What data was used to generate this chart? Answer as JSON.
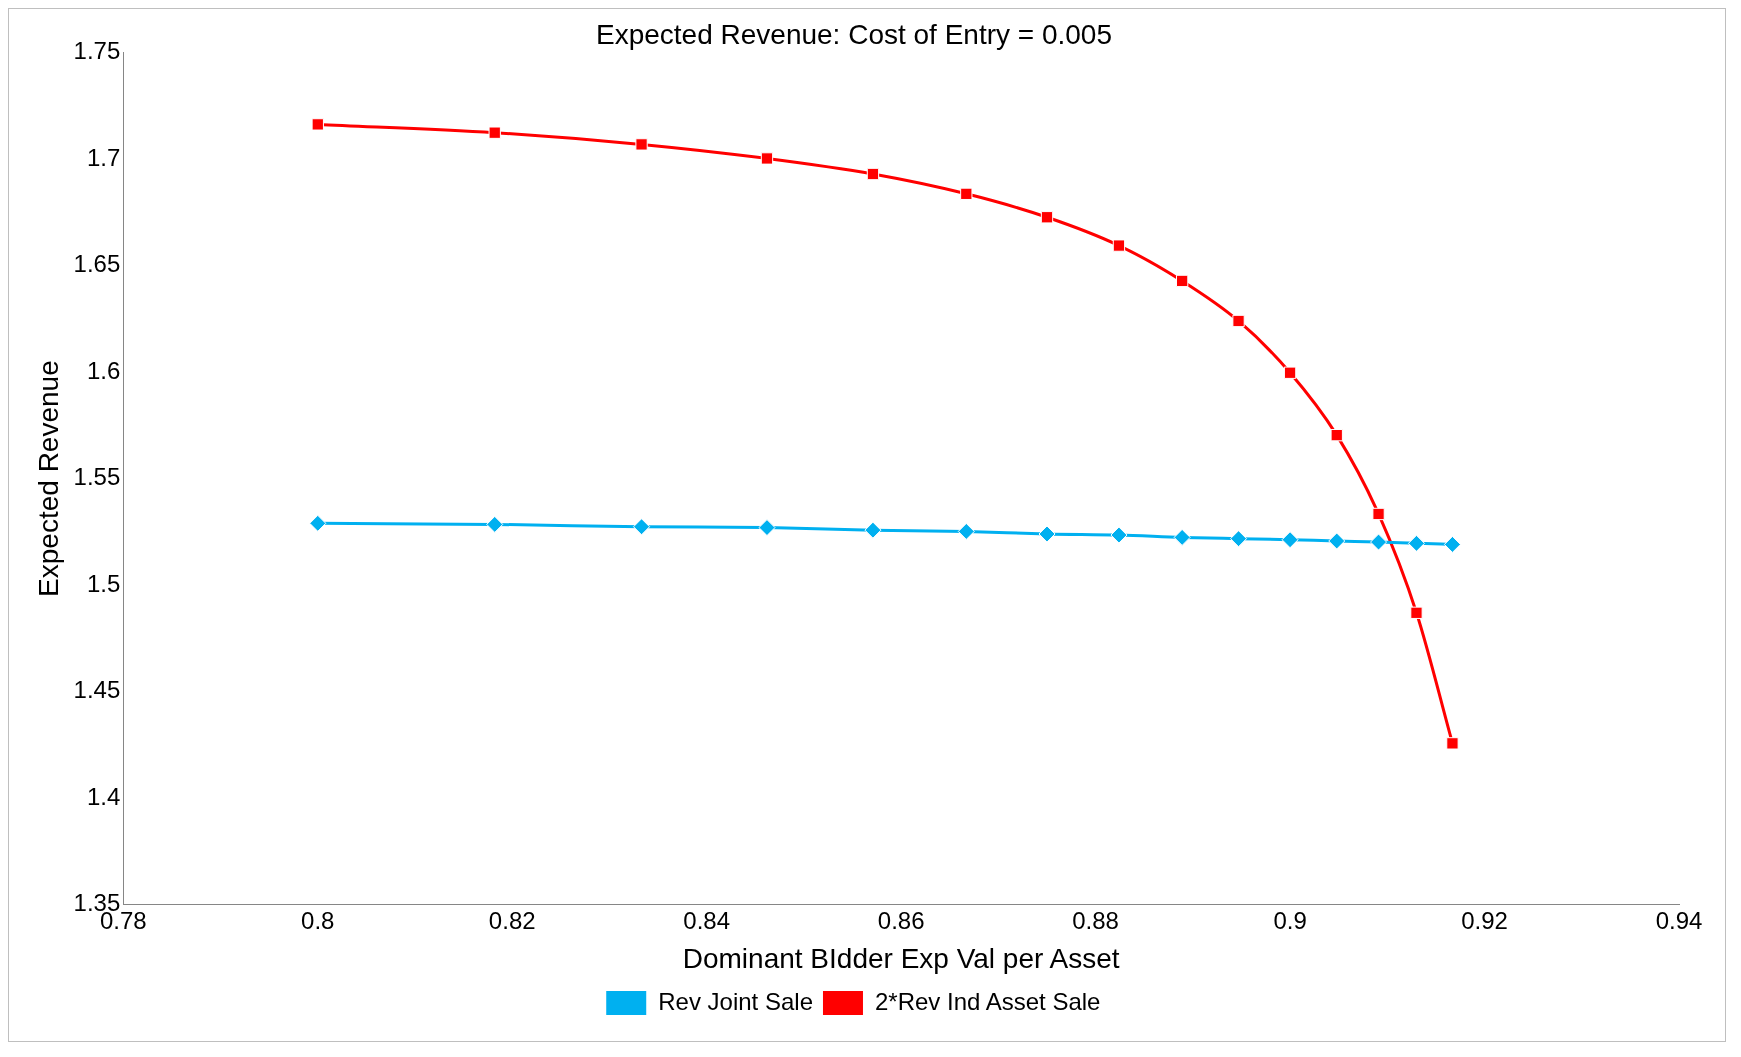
{
  "chart_data": {
    "type": "line",
    "title": "Expected Revenue: Cost of Entry = 0.005",
    "xlabel": "Dominant BIdder Exp Val per Asset",
    "ylabel": "Expected Revenue",
    "x": [
      0.8,
      0.8182,
      0.8333,
      0.8462,
      0.8571,
      0.8667,
      0.875,
      0.8824,
      0.8889,
      0.8947,
      0.9,
      0.9048,
      0.9091,
      0.913,
      0.9167
    ],
    "series": [
      {
        "name": "Rev Joint Sale",
        "color": "#00b0f0",
        "marker": "diamond",
        "values": [
          1.529,
          1.5285,
          1.5274,
          1.527,
          1.5258,
          1.5252,
          1.524,
          1.5235,
          1.5224,
          1.5218,
          1.5213,
          1.5207,
          1.5202,
          1.5196,
          1.5191
        ]
      },
      {
        "name": "2*Rev Ind Asset Sale",
        "color": "#ff0000",
        "marker": "square",
        "values": [
          1.7163,
          1.7124,
          1.7069,
          1.7003,
          1.693,
          1.6837,
          1.6727,
          1.6594,
          1.6428,
          1.624,
          1.5997,
          1.5704,
          1.5334,
          1.487,
          1.4257
        ]
      }
    ],
    "xlim": [
      0.78,
      0.94
    ],
    "xticks": [
      0.78,
      0.8,
      0.82,
      0.84,
      0.86,
      0.88,
      0.9,
      0.92,
      0.94
    ],
    "ylim": [
      1.35,
      1.75
    ],
    "yticks": [
      1.35,
      1.4,
      1.45,
      1.5,
      1.55,
      1.6,
      1.65,
      1.7,
      1.75
    ],
    "grid": false,
    "legend": "bottom",
    "line_style": "solid"
  }
}
